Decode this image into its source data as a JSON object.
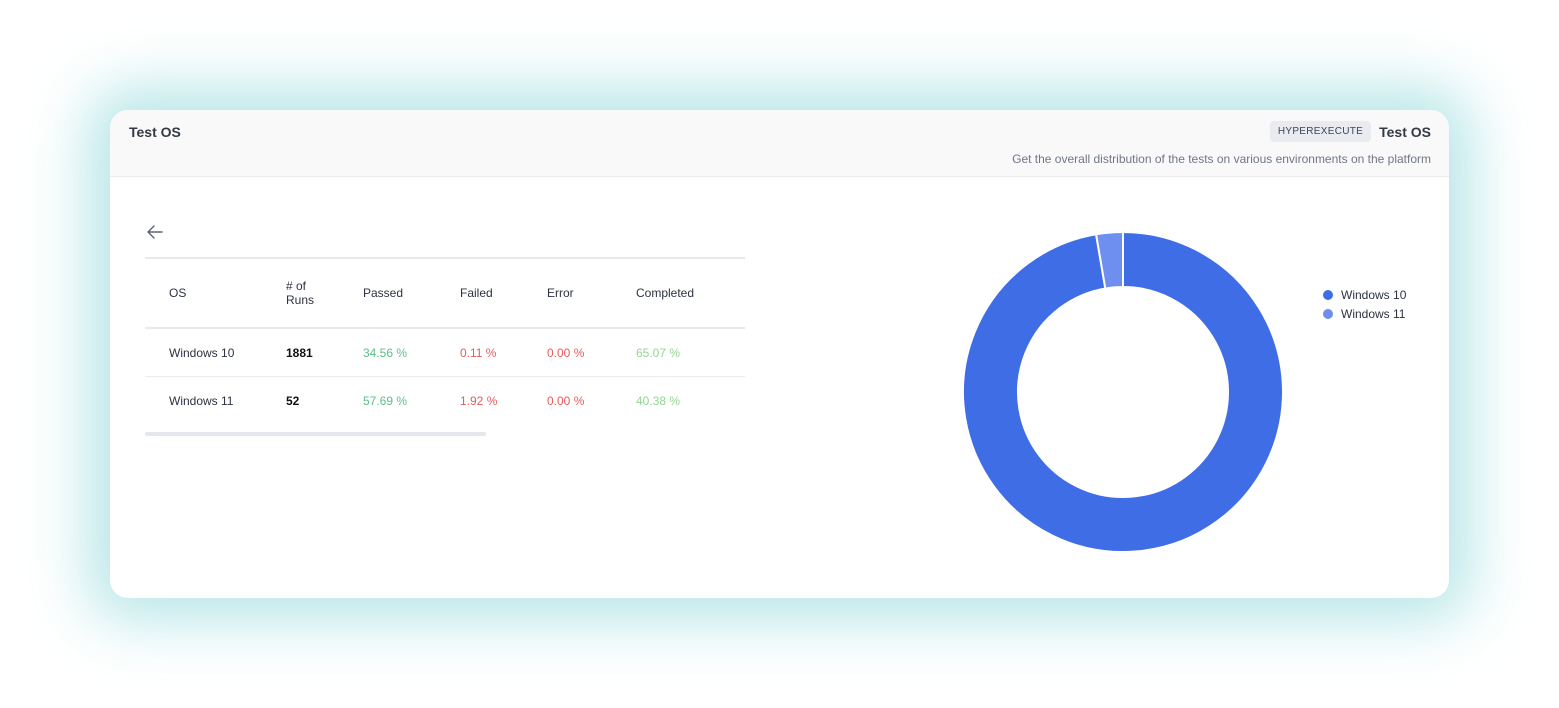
{
  "header": {
    "title": "Test OS",
    "tag": "HYPEREXECUTE",
    "right_title": "Test OS",
    "subtitle": "Get the overall distribution of the tests on various environments on the platform"
  },
  "table": {
    "columns": [
      "OS",
      "# of Runs",
      "Passed",
      "Failed",
      "Error",
      "Completed"
    ],
    "rows": [
      {
        "os": "Windows 10",
        "runs": "1881",
        "passed": "34.56 %",
        "failed": "0.11 %",
        "error": "0.00 %",
        "completed": "65.07 %"
      },
      {
        "os": "Windows 11",
        "runs": "52",
        "passed": "57.69 %",
        "failed": "1.92 %",
        "error": "0.00 %",
        "completed": "40.38 %"
      }
    ]
  },
  "chart_data": {
    "type": "pie",
    "variant": "donut",
    "categories": [
      "Windows 10",
      "Windows 11"
    ],
    "values": [
      1881,
      52
    ],
    "colors": [
      "#3f6de6",
      "#6f8ff0"
    ],
    "legend_position": "right"
  },
  "icons": {
    "back": "arrow-left-icon"
  }
}
